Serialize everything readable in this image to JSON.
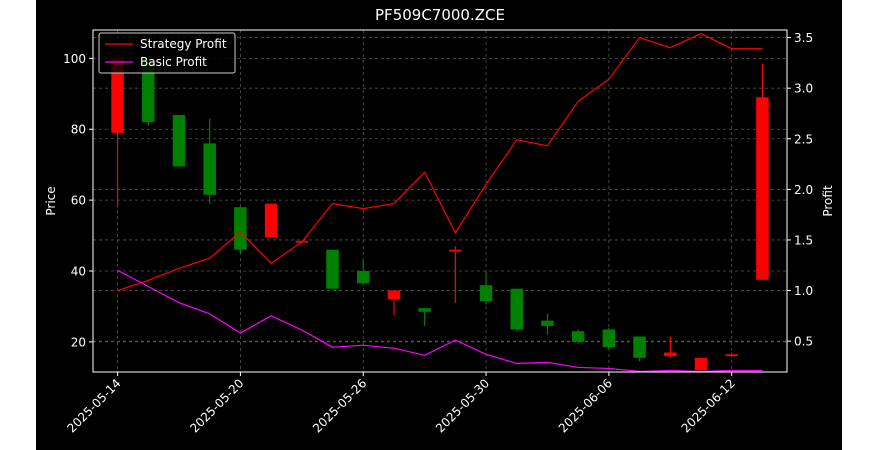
{
  "chart_data": {
    "type": "candlestick",
    "title": "PF509C7000.ZCE",
    "ylabel_left": "Price",
    "ylabel_right": "Profit",
    "xlabel": "",
    "grid": true,
    "legend_placement": "top-left",
    "background": "#000000",
    "text_color": "#ffffff",
    "colors": {
      "up": "#ff0000",
      "down": "#008000",
      "strategy": "#ff0000",
      "basic": "#ff00ff",
      "grid": "#555555"
    },
    "ylim_left": [
      11.5,
      108
    ],
    "ylim_right": [
      0.195,
      3.575
    ],
    "yticks_left": [
      20,
      40,
      60,
      80,
      100
    ],
    "yticks_right": [
      0.5,
      1.0,
      1.5,
      2.0,
      2.5,
      3.0,
      3.5
    ],
    "ytick_labels_right": [
      "0.5",
      "1.0",
      "1.5",
      "2.0",
      "2.5",
      "3.0",
      "3.5"
    ],
    "xlim": [
      -0.8,
      21.8
    ],
    "xticks": [
      {
        "i": 0,
        "label": "2025-05-14"
      },
      {
        "i": 4,
        "label": "2025-05-20"
      },
      {
        "i": 8,
        "label": "2025-05-26"
      },
      {
        "i": 12,
        "label": "2025-05-30"
      },
      {
        "i": 16,
        "label": "2025-06-06"
      },
      {
        "i": 20,
        "label": "2025-06-12"
      }
    ],
    "candles": [
      {
        "i": 0,
        "open": 79,
        "close": 100,
        "high": 100,
        "low": 58
      },
      {
        "i": 1,
        "open": 100,
        "close": 82,
        "high": 100,
        "low": 81
      },
      {
        "i": 2,
        "open": 84,
        "close": 69.5,
        "high": 84,
        "low": 69.5
      },
      {
        "i": 3,
        "open": 76,
        "close": 61.5,
        "high": 83,
        "low": 59
      },
      {
        "i": 4,
        "open": 58,
        "close": 46,
        "high": 58,
        "low": 45
      },
      {
        "i": 5,
        "open": 49.5,
        "close": 59,
        "high": 59,
        "low": 49.5
      },
      {
        "i": 6,
        "open": 48,
        "close": 48.5,
        "high": 48.5,
        "low": 48
      },
      {
        "i": 7,
        "open": 46,
        "close": 35,
        "high": 46,
        "low": 35
      },
      {
        "i": 8,
        "open": 40,
        "close": 36.5,
        "high": 43,
        "low": 36
      },
      {
        "i": 9,
        "open": 32,
        "close": 34.5,
        "high": 34.5,
        "low": 27.5
      },
      {
        "i": 10,
        "open": 29.5,
        "close": 28.5,
        "high": 29.5,
        "low": 24.5
      },
      {
        "i": 11,
        "open": 45.5,
        "close": 46,
        "high": 47,
        "low": 31
      },
      {
        "i": 12,
        "open": 36,
        "close": 31.5,
        "high": 39.5,
        "low": 30.5
      },
      {
        "i": 13,
        "open": 35,
        "close": 23.5,
        "high": 35,
        "low": 23
      },
      {
        "i": 14,
        "open": 26,
        "close": 24.5,
        "high": 28,
        "low": 22
      },
      {
        "i": 15,
        "open": 23,
        "close": 20,
        "high": 23.5,
        "low": 19.5
      },
      {
        "i": 16,
        "open": 23.5,
        "close": 18.5,
        "high": 24,
        "low": 18
      },
      {
        "i": 17,
        "open": 21.5,
        "close": 15.5,
        "high": 21.5,
        "low": 14.5
      },
      {
        "i": 18,
        "open": 16,
        "close": 17,
        "high": 21.5,
        "low": 15.5
      },
      {
        "i": 19,
        "open": 12,
        "close": 15.5,
        "high": 15.5,
        "low": 12
      },
      {
        "i": 20,
        "open": 16,
        "close": 16.5,
        "high": 17,
        "low": 16
      },
      {
        "i": 21,
        "open": 37.5,
        "close": 89,
        "high": 98.5,
        "low": 37.5
      }
    ],
    "series": [
      {
        "name": "Strategy Profit",
        "values": [
          1.0,
          1.1,
          1.22,
          1.32,
          1.58,
          1.27,
          1.48,
          1.86,
          1.81,
          1.86,
          2.17,
          1.57,
          2.05,
          2.49,
          2.43,
          2.87,
          3.09,
          3.5,
          3.4,
          3.54,
          3.39,
          3.39
        ]
      },
      {
        "name": "Basic Profit",
        "values": [
          1.2,
          1.04,
          0.88,
          0.77,
          0.58,
          0.75,
          0.61,
          0.44,
          0.46,
          0.43,
          0.36,
          0.51,
          0.37,
          0.28,
          0.29,
          0.24,
          0.23,
          0.2,
          0.21,
          0.2,
          0.21,
          0.21
        ]
      }
    ]
  }
}
